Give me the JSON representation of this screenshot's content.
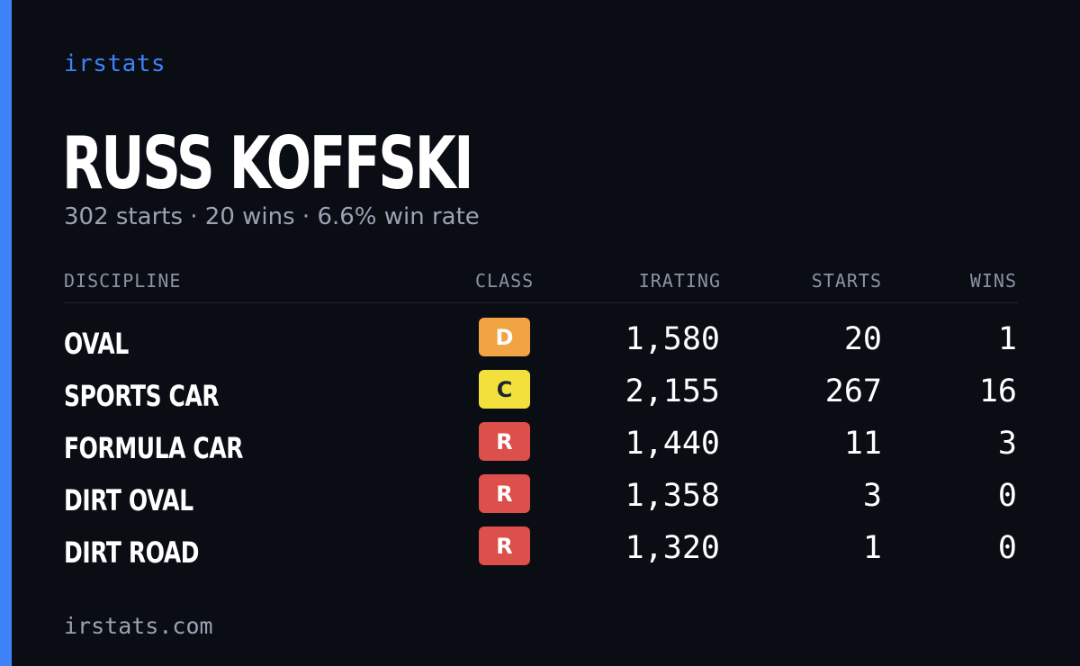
{
  "brand": "irstats",
  "player": {
    "name": "RUSS KOFFSKI",
    "summary": "302 starts · 20 wins · 6.6% win rate"
  },
  "table": {
    "headers": {
      "discipline": "DISCIPLINE",
      "class": "CLASS",
      "irating": "IRATING",
      "starts": "STARTS",
      "wins": "WINS"
    },
    "rows": [
      {
        "discipline": "OVAL",
        "class": "D",
        "class_color": "#f0a444",
        "class_text_color": "#ffffff",
        "irating": "1,580",
        "starts": "20",
        "wins": "1"
      },
      {
        "discipline": "SPORTS CAR",
        "class": "C",
        "class_color": "#f2e13c",
        "class_text_color": "#1e2430",
        "irating": "2,155",
        "starts": "267",
        "wins": "16"
      },
      {
        "discipline": "FORMULA CAR",
        "class": "R",
        "class_color": "#dd4f4a",
        "class_text_color": "#ffffff",
        "irating": "1,440",
        "starts": "11",
        "wins": "3"
      },
      {
        "discipline": "DIRT OVAL",
        "class": "R",
        "class_color": "#dd4f4a",
        "class_text_color": "#ffffff",
        "irating": "1,358",
        "starts": "3",
        "wins": "0"
      },
      {
        "discipline": "DIRT ROAD",
        "class": "R",
        "class_color": "#dd4f4a",
        "class_text_color": "#ffffff",
        "irating": "1,320",
        "starts": "1",
        "wins": "0"
      }
    ]
  },
  "footer": "irstats.com",
  "colors": {
    "accent": "#3d82f6",
    "background": "#0a0d14"
  }
}
